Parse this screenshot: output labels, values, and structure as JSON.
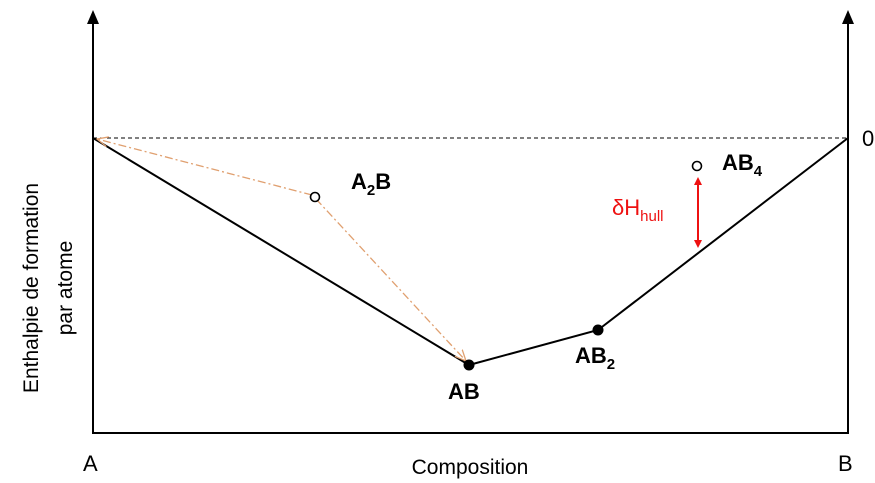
{
  "diagram": {
    "axis_corner_left": "A",
    "axis_corner_right": "B",
    "xlabel": "Composition",
    "ylabel_line1": "Enthalpie de formation",
    "ylabel_line2": "par atome",
    "zero_label": "0",
    "phases": [
      {
        "main": "A",
        "sub": "2",
        "tail": "B",
        "on_hull": false
      },
      {
        "main": "AB",
        "sub": "",
        "tail": "",
        "on_hull": true
      },
      {
        "main": "AB",
        "sub": "2",
        "tail": "",
        "on_hull": true
      },
      {
        "main": "AB",
        "sub": "4",
        "tail": "",
        "on_hull": false
      }
    ],
    "distance_label": {
      "main": "δH",
      "sub": "hull"
    },
    "colors": {
      "axes": "#000000",
      "hull": "#000000",
      "reference_line": "#000000",
      "decomposition_arrows": "#e0a070",
      "distance_arrow": "#ee1111",
      "distance_label": "#ee1111"
    }
  }
}
